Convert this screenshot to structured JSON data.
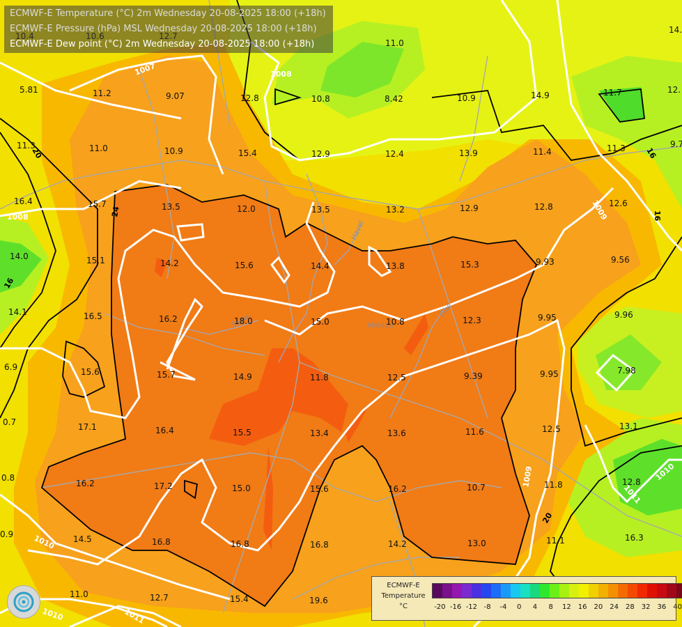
{
  "titles": [
    "ECMWF-E Temperature (°C) 2m Wednesday 20-08-2025 18:00 (+18h)",
    "ECMWF-E Pressure (hPa) MSL Wednesday 20-08-2025 18:00 (+18h)",
    "ECMWF-E Dew point (°C) 2m Wednesday 20-08-2025 18:00 (+18h)"
  ],
  "isobar_labels": [
    "1007",
    "1008",
    "1008",
    "1009",
    "1009",
    "1010",
    "1010",
    "1011",
    "1011",
    "1010"
  ],
  "isotherm_labels": [
    "24",
    "20",
    "20",
    "16",
    "16",
    "16"
  ],
  "river_labels": [
    "Havel",
    "Saale",
    "Elbe",
    "Moldau"
  ],
  "dew_points": [
    "10.4",
    "10.6",
    "12.7",
    "11.2",
    "9.07",
    "12.8",
    "10.8",
    "8.42",
    "10.9",
    "14.9",
    "11.7",
    "12.",
    "5.81",
    "11.3",
    "11.0",
    "10.9",
    "15.4",
    "12.9",
    "12.4",
    "13.9",
    "11.4",
    "11.3",
    "9.7",
    "16.4",
    "15.7",
    "13.5",
    "12.0",
    "13.5",
    "13.2",
    "12.9",
    "12.8",
    "12.6",
    "14.0",
    "15.1",
    "14.2",
    "15.6",
    "14.4",
    "13.8",
    "15.3",
    "9.93",
    "9.56",
    "14.1",
    "16.5",
    "16.2",
    "18.0",
    "15.0",
    "10.8",
    "12.3",
    "9.95",
    "9.96",
    "6.9",
    "15.6",
    "15.7",
    "14.9",
    "11.8",
    "12.5",
    "9.39",
    "9.95",
    "7.98",
    "0.7",
    "17.1",
    "16.4",
    "15.5",
    "13.4",
    "13.6",
    "11.6",
    "12.5",
    "13.1",
    "0.8",
    "16.2",
    "17.2",
    "15.0",
    "15.6",
    "16.2",
    "10.7",
    "11.8",
    "12.8",
    "0.9",
    "14.5",
    "16.8",
    "16.8",
    "16.8",
    "14.2",
    "13.0",
    "11.1",
    "16.3",
    "11.0",
    "12.7",
    "15.4",
    "19.6",
    "11.3",
    "11.8",
    "14.1",
    "11.0"
  ],
  "legend": {
    "title_lines": [
      "ECMWF-E",
      "Temperature",
      "°C"
    ],
    "ticks": [
      "-20",
      "-16",
      "-12",
      "-8",
      "-4",
      "0",
      "4",
      "8",
      "12",
      "16",
      "20",
      "24",
      "28",
      "32",
      "36",
      "40"
    ],
    "colors": [
      "#5a0a5e",
      "#7a108a",
      "#9418b0",
      "#7a2ad0",
      "#4a30e0",
      "#2846f0",
      "#1c6cf8",
      "#1a9af8",
      "#18c8f0",
      "#18e0c0",
      "#18d880",
      "#2ee830",
      "#6cf018",
      "#a8f010",
      "#d8f010",
      "#f0f000",
      "#f0d000",
      "#f2b000",
      "#f49000",
      "#f46c00",
      "#f44a00",
      "#f22800",
      "#e01000",
      "#c80a10",
      "#a00818",
      "#7a0818"
    ]
  },
  "colors": {
    "temp_16_20": "#e4f20a",
    "temp_20_22": "#f4d800",
    "temp_22_24": "#f8b800",
    "temp_24_26": "#f7a11c",
    "temp_26_28": "#f17b15",
    "temp_28_30": "#f45d10",
    "temp_30_32": "#f43c10",
    "temp_cool": "#d6ee20",
    "temp_green": "#96ec2a",
    "temp_green_dark": "#3cd82c",
    "isobar": "#ffffff",
    "isotherm": "#000000",
    "border": "#a8a8a8",
    "title_text": "#e8e8e8"
  }
}
